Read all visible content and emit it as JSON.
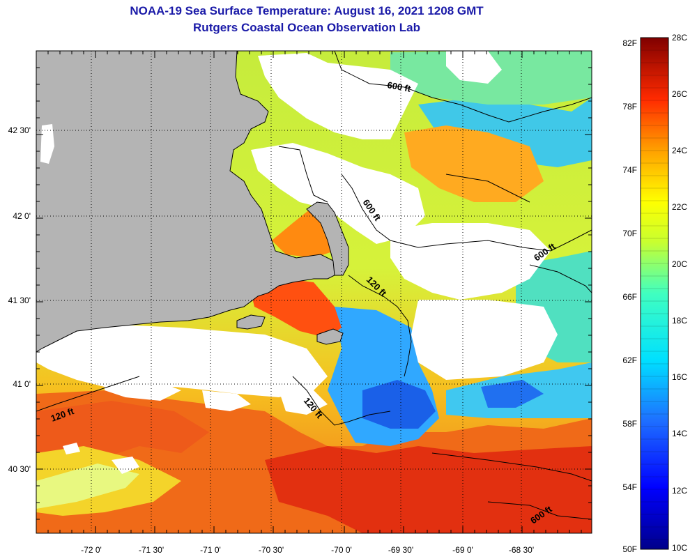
{
  "title": {
    "line1": "NOAA-19 Sea Surface Temperature:  August 16, 2021 1208 GMT",
    "line2": "Rutgers Coastal Ocean Observation Lab"
  },
  "map": {
    "lon_labels": [
      "-72 0'",
      "-71 30'",
      "-71 0'",
      "-70 30'",
      "-70 0'",
      "-69 30'",
      "-69 0'",
      "-68 30'"
    ],
    "lat_labels": [
      "42 30'",
      "42 0'",
      "41 30'",
      "41 0'",
      "40 30'"
    ],
    "contour_labels": [
      "600 ft",
      "600 ft",
      "600 ft",
      "120 ft",
      "120 ft",
      "120 ft",
      "600 ft"
    ],
    "colors": {
      "land": "#b4b4b4",
      "cloud": "#ffffff"
    }
  },
  "colorbar": {
    "f_labels": [
      "82F",
      "78F",
      "74F",
      "70F",
      "66F",
      "62F",
      "58F",
      "54F",
      "50F"
    ],
    "c_labels": [
      "28C",
      "26C",
      "24C",
      "22C",
      "20C",
      "18C",
      "16C",
      "14C",
      "12C",
      "10C"
    ]
  }
}
